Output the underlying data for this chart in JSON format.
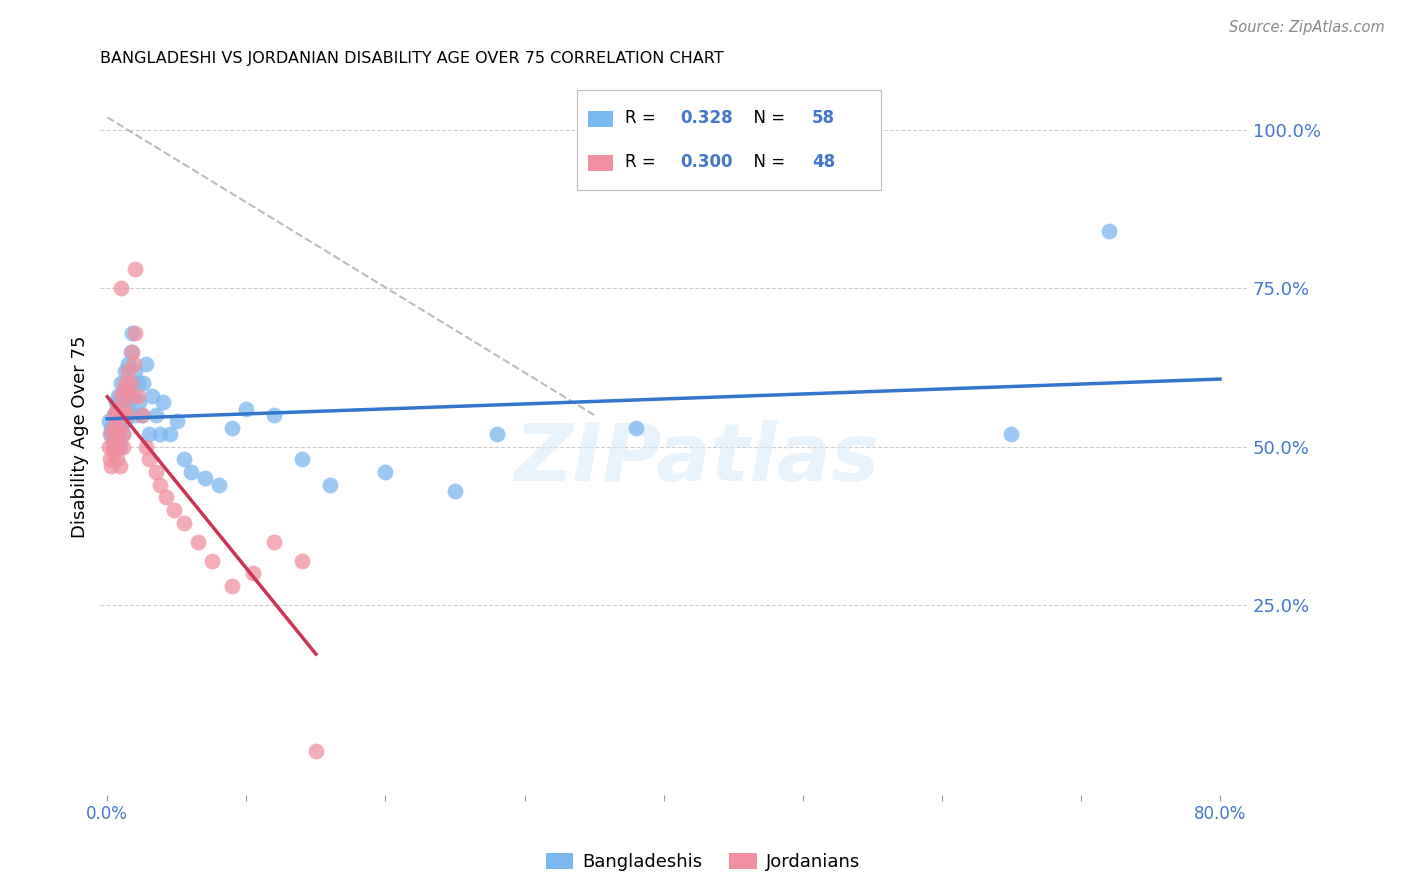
{
  "title": "BANGLADESHI VS JORDANIAN DISABILITY AGE OVER 75 CORRELATION CHART",
  "source": "Source: ZipAtlas.com",
  "ylabel": "Disability Age Over 75",
  "color_bangladeshi": "#7ab8f0",
  "color_jordanian": "#f090a0",
  "color_trendline_bangladeshi": "#3377cc",
  "color_trendline_jordanian": "#cc3355",
  "color_diagonal": "#bbbbbb",
  "color_axis_labels": "#4477cc",
  "color_grid": "#cccccc",
  "watermark": "ZIPatlas",
  "bangladeshis_x": [
    0.001,
    0.002,
    0.003,
    0.004,
    0.005,
    0.005,
    0.006,
    0.006,
    0.007,
    0.007,
    0.008,
    0.008,
    0.009,
    0.009,
    0.01,
    0.01,
    0.011,
    0.011,
    0.012,
    0.012,
    0.013,
    0.013,
    0.014,
    0.015,
    0.015,
    0.016,
    0.017,
    0.018,
    0.019,
    0.02,
    0.02,
    0.022,
    0.023,
    0.025,
    0.026,
    0.028,
    0.03,
    0.032,
    0.035,
    0.038,
    0.04,
    0.045,
    0.05,
    0.055,
    0.06,
    0.07,
    0.08,
    0.09,
    0.1,
    0.12,
    0.14,
    0.16,
    0.2,
    0.25,
    0.28,
    0.38,
    0.65,
    0.72
  ],
  "bangladeshis_y": [
    0.54,
    0.52,
    0.53,
    0.51,
    0.5,
    0.55,
    0.52,
    0.57,
    0.53,
    0.56,
    0.51,
    0.58,
    0.54,
    0.5,
    0.53,
    0.6,
    0.55,
    0.52,
    0.57,
    0.59,
    0.54,
    0.62,
    0.58,
    0.56,
    0.63,
    0.6,
    0.65,
    0.68,
    0.58,
    0.55,
    0.62,
    0.6,
    0.57,
    0.55,
    0.6,
    0.63,
    0.52,
    0.58,
    0.55,
    0.52,
    0.57,
    0.52,
    0.54,
    0.48,
    0.46,
    0.45,
    0.44,
    0.53,
    0.56,
    0.55,
    0.48,
    0.44,
    0.46,
    0.43,
    0.52,
    0.53,
    0.52,
    0.84
  ],
  "jordanians_x": [
    0.001,
    0.002,
    0.003,
    0.003,
    0.004,
    0.004,
    0.005,
    0.005,
    0.006,
    0.006,
    0.007,
    0.007,
    0.008,
    0.008,
    0.009,
    0.009,
    0.01,
    0.01,
    0.011,
    0.011,
    0.012,
    0.012,
    0.013,
    0.014,
    0.015,
    0.016,
    0.017,
    0.018,
    0.019,
    0.02,
    0.022,
    0.025,
    0.028,
    0.03,
    0.035,
    0.038,
    0.042,
    0.048,
    0.055,
    0.065,
    0.075,
    0.09,
    0.105,
    0.12,
    0.14,
    0.01,
    0.02,
    0.15
  ],
  "jordanians_y": [
    0.5,
    0.48,
    0.52,
    0.47,
    0.53,
    0.5,
    0.49,
    0.55,
    0.51,
    0.54,
    0.48,
    0.56,
    0.52,
    0.5,
    0.53,
    0.47,
    0.55,
    0.58,
    0.52,
    0.5,
    0.56,
    0.59,
    0.6,
    0.55,
    0.62,
    0.58,
    0.6,
    0.65,
    0.63,
    0.68,
    0.58,
    0.55,
    0.5,
    0.48,
    0.46,
    0.44,
    0.42,
    0.4,
    0.38,
    0.35,
    0.32,
    0.28,
    0.3,
    0.35,
    0.32,
    0.75,
    0.78,
    0.02
  ],
  "xlim_min": -0.005,
  "xlim_max": 0.82,
  "ylim_min": -0.05,
  "ylim_max": 1.08,
  "x_ticks": [
    0.0,
    0.1,
    0.2,
    0.3,
    0.4,
    0.5,
    0.6,
    0.7,
    0.8
  ],
  "x_tick_labels": [
    "0.0%",
    "",
    "",
    "",
    "",
    "",
    "",
    "",
    "80.0%"
  ],
  "y_ticks_right": [
    0.25,
    0.5,
    0.75,
    1.0
  ],
  "y_tick_labels_right": [
    "25.0%",
    "50.0%",
    "75.0%",
    "100.0%"
  ],
  "r_bangladeshi": "0.328",
  "n_bangladeshi": "58",
  "r_jordanian": "0.300",
  "n_jordanian": "48"
}
